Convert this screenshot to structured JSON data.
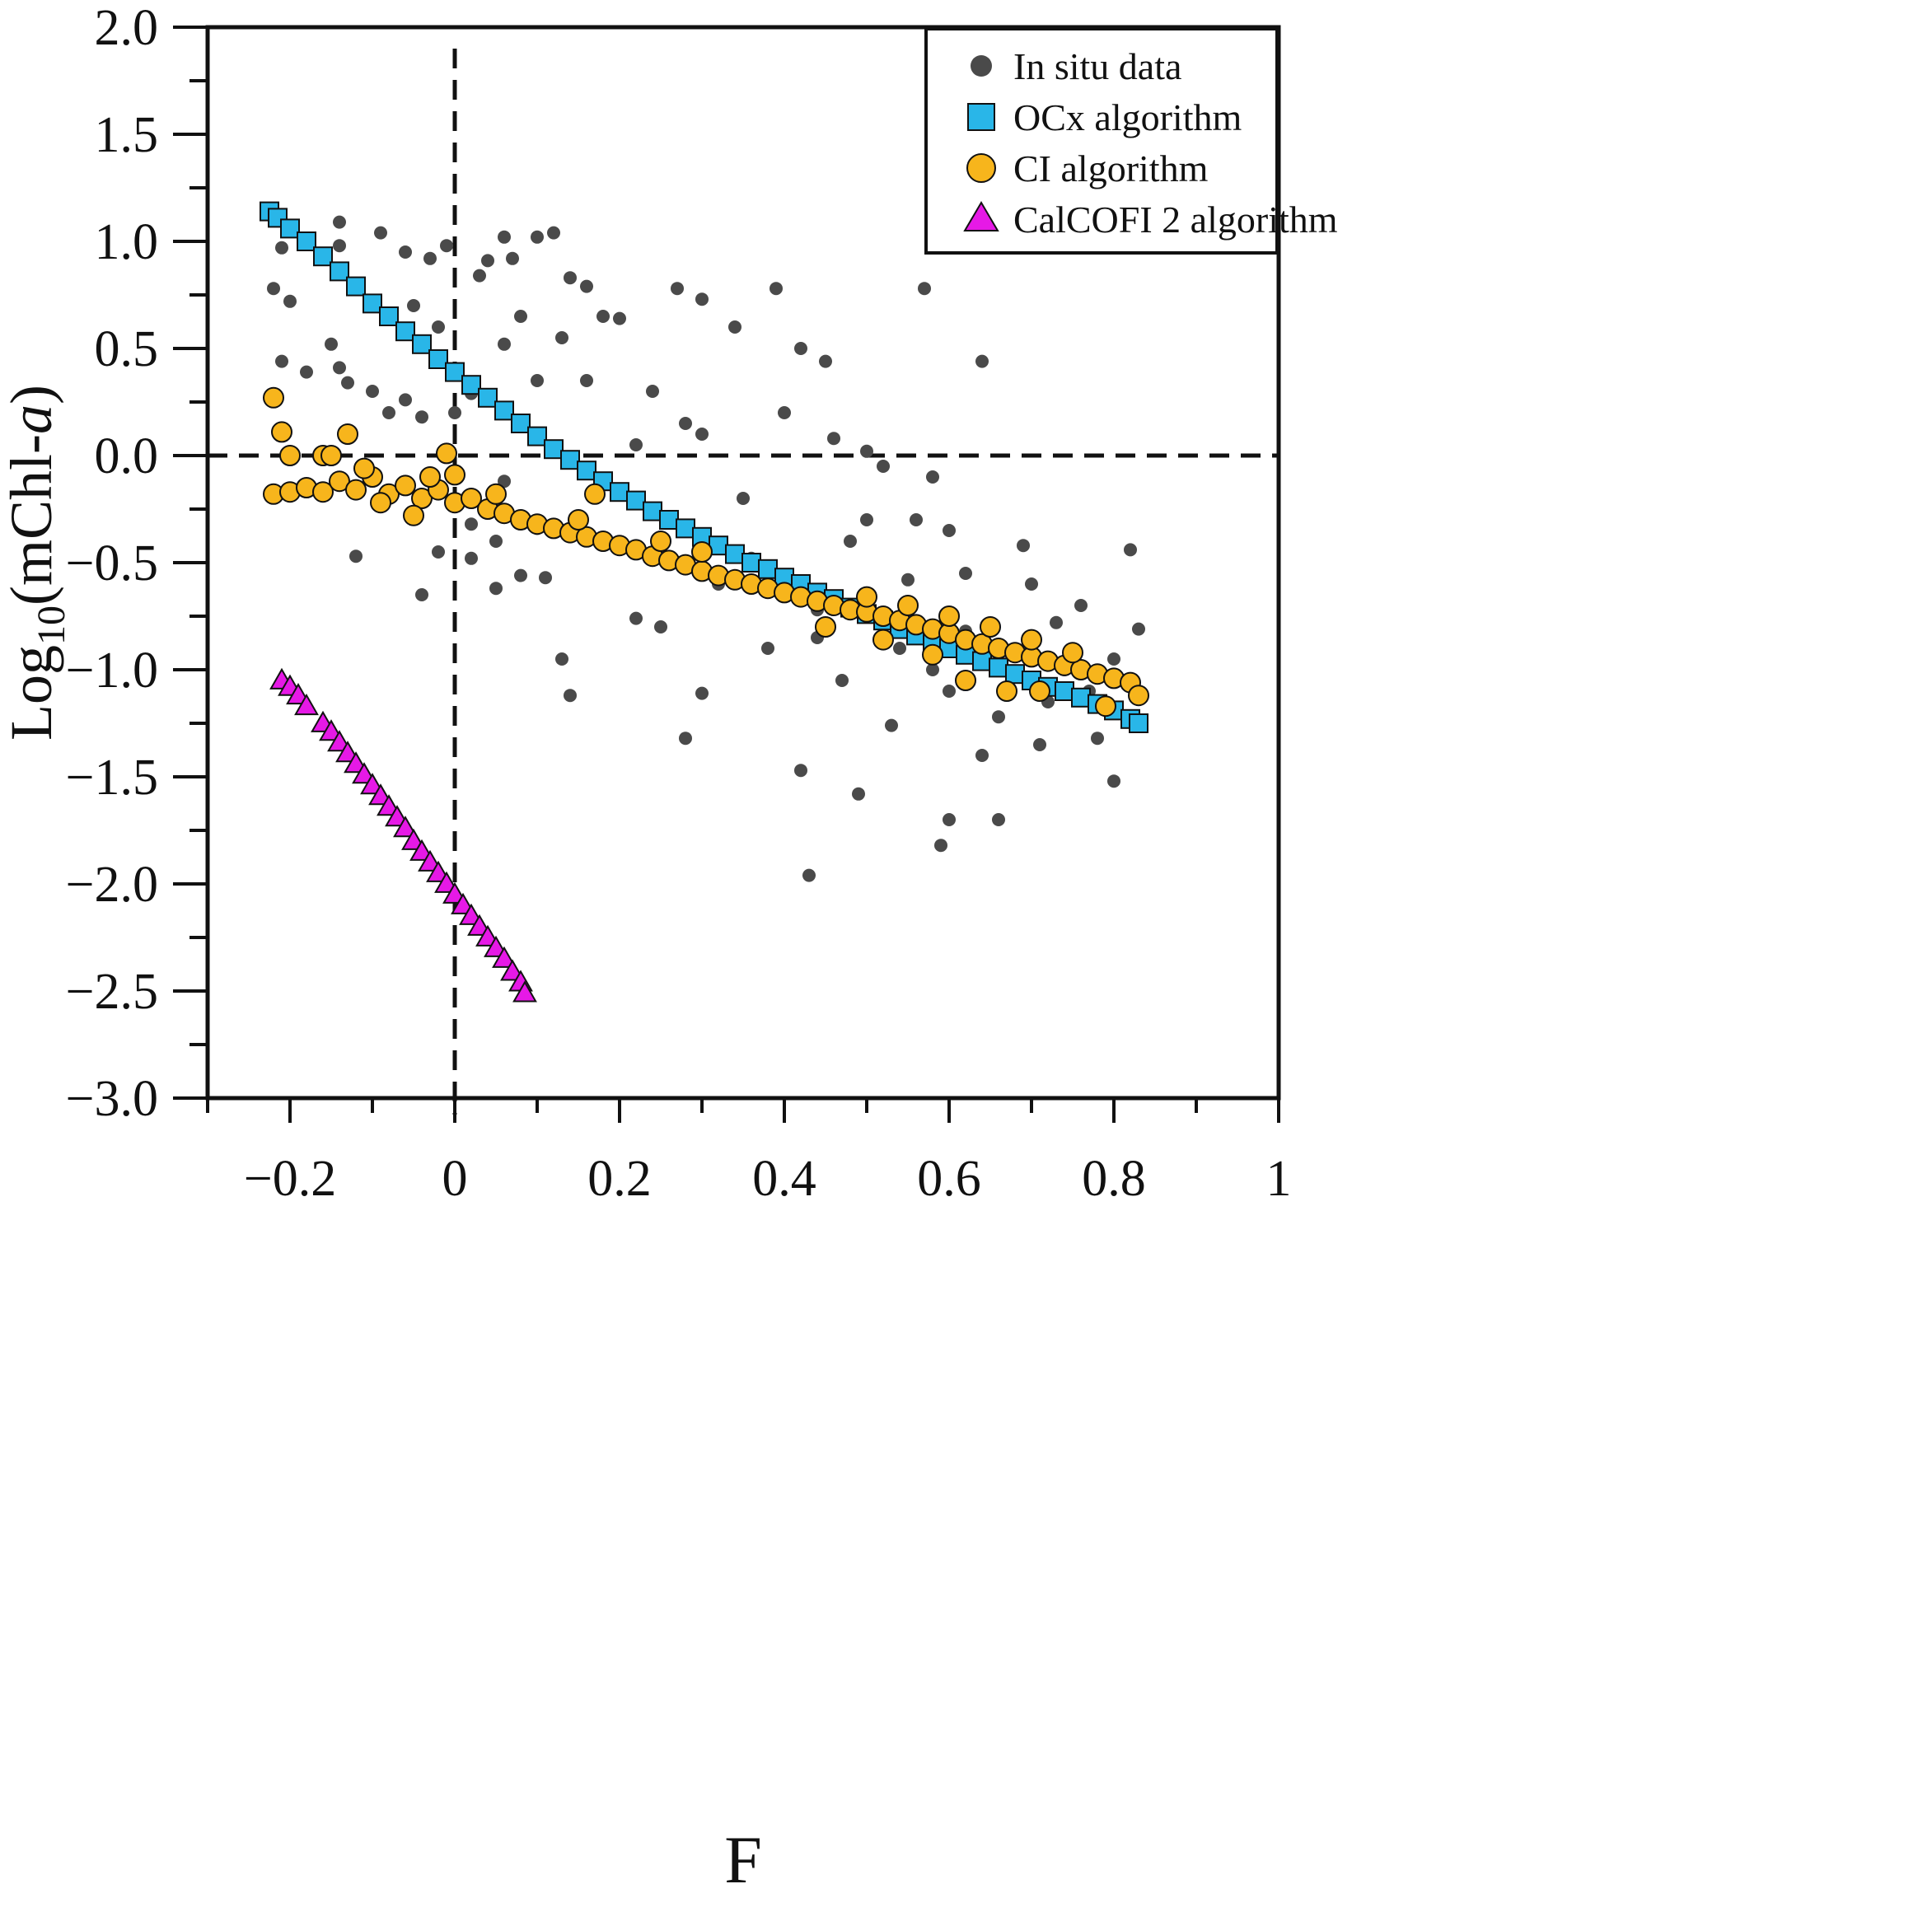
{
  "chart_data": {
    "type": "scatter",
    "title": "",
    "xlabel": "F",
    "ylabel_main": "Log",
    "ylabel_sub": "10",
    "ylabel_paren": "(mChl-",
    "ylabel_italic": "a",
    "ylabel_close": ")",
    "xlim": [
      -0.3,
      1.0
    ],
    "ylim": [
      -3.0,
      2.0
    ],
    "x_ticks": [
      -0.2,
      0,
      0.2,
      0.4,
      0.6,
      0.8,
      1
    ],
    "x_tick_labels": [
      "−0.2",
      "0",
      "0.2",
      "0.4",
      "0.6",
      "0.8",
      "1"
    ],
    "y_ticks": [
      -3.0,
      -2.5,
      -2.0,
      -1.5,
      -1.0,
      -0.5,
      0.0,
      0.5,
      1.0,
      1.5,
      2.0
    ],
    "y_tick_labels": [
      "−3.0",
      "−2.5",
      "−2.0",
      "−1.5",
      "−1.0",
      "−0.5",
      "0.0",
      "0.5",
      "1.0",
      "1.5",
      "2.0"
    ],
    "reference_lines": {
      "vertical_x": 0,
      "horizontal_y": 0
    },
    "legend": {
      "position": "top-right",
      "entries": [
        {
          "label": "In situ data",
          "marker": "circle-small",
          "color": "#4a4a4a"
        },
        {
          "label": "OCx algorithm",
          "marker": "square",
          "color": "#29b6e8"
        },
        {
          "label": "CI algorithm",
          "marker": "circle",
          "color": "#f7b51c"
        },
        {
          "label": "CalCOFI 2 algorithm",
          "marker": "triangle",
          "color": "#e619e6"
        }
      ]
    },
    "series": [
      {
        "name": "In situ data",
        "marker": "circle-small",
        "color": "#4a4a4a",
        "points": [
          [
            -0.21,
            0.97
          ],
          [
            -0.2,
            0.72
          ],
          [
            -0.22,
            0.78
          ],
          [
            -0.21,
            0.44
          ],
          [
            -0.14,
            1.09
          ],
          [
            -0.14,
            0.98
          ],
          [
            -0.09,
            1.04
          ],
          [
            -0.15,
            0.52
          ],
          [
            -0.14,
            0.41
          ],
          [
            -0.18,
            0.39
          ],
          [
            -0.13,
            0.34
          ],
          [
            -0.1,
            0.3
          ],
          [
            -0.06,
            0.95
          ],
          [
            -0.03,
            0.92
          ],
          [
            -0.01,
            0.98
          ],
          [
            -0.05,
            0.7
          ],
          [
            -0.02,
            0.6
          ],
          [
            0.03,
            0.84
          ],
          [
            0.04,
            0.91
          ],
          [
            0.06,
            1.02
          ],
          [
            0.1,
            1.02
          ],
          [
            0.12,
            1.04
          ],
          [
            0.07,
            0.92
          ],
          [
            0.14,
            0.83
          ],
          [
            0.16,
            0.79
          ],
          [
            -0.06,
            0.26
          ],
          [
            -0.08,
            0.2
          ],
          [
            -0.04,
            0.18
          ],
          [
            -0.12,
            -0.47
          ],
          [
            -0.02,
            -0.45
          ],
          [
            -0.04,
            -0.65
          ],
          [
            0.02,
            -0.48
          ],
          [
            0.05,
            -0.62
          ],
          [
            0.08,
            -0.56
          ],
          [
            0.11,
            -0.57
          ],
          [
            0.13,
            -0.95
          ],
          [
            0.14,
            -1.12
          ],
          [
            0.22,
            -0.76
          ],
          [
            0.28,
            -1.32
          ],
          [
            0.3,
            -1.11
          ],
          [
            0.42,
            -1.47
          ],
          [
            0.43,
            -1.96
          ],
          [
            0.49,
            -1.58
          ],
          [
            0.59,
            -1.82
          ],
          [
            0.6,
            -1.7
          ],
          [
            0.66,
            -1.7
          ],
          [
            0.8,
            -1.52
          ],
          [
            0.57,
            0.78
          ],
          [
            0.64,
            0.44
          ],
          [
            0.82,
            -0.44
          ],
          [
            0.83,
            -0.81
          ],
          [
            0.78,
            -1.32
          ],
          [
            0.71,
            -1.35
          ],
          [
            0.64,
            -1.4
          ],
          [
            0.53,
            -1.26
          ],
          [
            0.45,
            0.44
          ],
          [
            0.39,
            0.78
          ],
          [
            0.27,
            0.78
          ],
          [
            0.3,
            0.73
          ],
          [
            0.18,
            0.65
          ],
          [
            0.2,
            0.64
          ],
          [
            0.24,
            0.3
          ],
          [
            0.06,
            0.52
          ],
          [
            0.1,
            0.35
          ],
          [
            0.02,
            0.29
          ],
          [
            0.0,
            0.2
          ],
          [
            0.06,
            -0.12
          ],
          [
            0.02,
            -0.32
          ],
          [
            0.05,
            -0.4
          ],
          [
            0.1,
            -0.34
          ],
          [
            0.15,
            -0.29
          ],
          [
            0.2,
            -0.18
          ],
          [
            0.32,
            -0.6
          ],
          [
            0.36,
            -0.48
          ],
          [
            0.44,
            -0.72
          ],
          [
            0.55,
            -0.58
          ],
          [
            0.62,
            -0.82
          ],
          [
            0.68,
            -0.92
          ],
          [
            0.74,
            -1.0
          ],
          [
            0.5,
            -0.3
          ],
          [
            0.46,
            0.08
          ],
          [
            0.52,
            -0.05
          ],
          [
            0.58,
            -0.1
          ],
          [
            0.69,
            -0.42
          ],
          [
            0.38,
            -0.9
          ],
          [
            0.25,
            -0.8
          ],
          [
            0.6,
            -1.1
          ],
          [
            0.66,
            -1.22
          ],
          [
            0.72,
            -1.15
          ],
          [
            0.76,
            -0.7
          ],
          [
            0.8,
            -0.95
          ],
          [
            0.4,
            0.2
          ],
          [
            0.35,
            -0.2
          ],
          [
            0.3,
            0.1
          ],
          [
            0.22,
            0.05
          ],
          [
            0.48,
            -0.4
          ],
          [
            0.56,
            -0.3
          ],
          [
            0.62,
            -0.55
          ],
          [
            0.7,
            -0.6
          ],
          [
            0.77,
            -1.1
          ],
          [
            0.54,
            -0.9
          ],
          [
            0.47,
            -1.05
          ],
          [
            0.34,
            0.6
          ],
          [
            0.42,
            0.5
          ],
          [
            0.13,
            0.55
          ],
          [
            0.08,
            0.65
          ],
          [
            0.16,
            0.35
          ],
          [
            0.28,
            0.15
          ],
          [
            0.5,
            0.02
          ],
          [
            0.6,
            -0.35
          ],
          [
            0.65,
            -0.9
          ],
          [
            0.73,
            -0.78
          ],
          [
            0.58,
            -1.0
          ],
          [
            0.44,
            -0.85
          ]
        ]
      },
      {
        "name": "OCx algorithm",
        "marker": "square",
        "color": "#29b6e8",
        "points": [
          [
            -0.225,
            1.14
          ],
          [
            -0.215,
            1.11
          ],
          [
            -0.2,
            1.06
          ],
          [
            -0.18,
            1.0
          ],
          [
            -0.16,
            0.93
          ],
          [
            -0.14,
            0.86
          ],
          [
            -0.12,
            0.79
          ],
          [
            -0.1,
            0.71
          ],
          [
            -0.08,
            0.65
          ],
          [
            -0.06,
            0.58
          ],
          [
            -0.04,
            0.52
          ],
          [
            -0.02,
            0.45
          ],
          [
            0.0,
            0.39
          ],
          [
            0.02,
            0.33
          ],
          [
            0.04,
            0.27
          ],
          [
            0.06,
            0.21
          ],
          [
            0.08,
            0.15
          ],
          [
            0.1,
            0.09
          ],
          [
            0.12,
            0.03
          ],
          [
            0.14,
            -0.02
          ],
          [
            0.16,
            -0.07
          ],
          [
            0.18,
            -0.12
          ],
          [
            0.2,
            -0.17
          ],
          [
            0.22,
            -0.21
          ],
          [
            0.24,
            -0.26
          ],
          [
            0.26,
            -0.3
          ],
          [
            0.28,
            -0.34
          ],
          [
            0.3,
            -0.38
          ],
          [
            0.32,
            -0.42
          ],
          [
            0.34,
            -0.46
          ],
          [
            0.36,
            -0.5
          ],
          [
            0.38,
            -0.53
          ],
          [
            0.4,
            -0.57
          ],
          [
            0.42,
            -0.6
          ],
          [
            0.44,
            -0.64
          ],
          [
            0.46,
            -0.67
          ],
          [
            0.48,
            -0.71
          ],
          [
            0.5,
            -0.74
          ],
          [
            0.52,
            -0.77
          ],
          [
            0.54,
            -0.81
          ],
          [
            0.56,
            -0.84
          ],
          [
            0.58,
            -0.87
          ],
          [
            0.6,
            -0.9
          ],
          [
            0.62,
            -0.93
          ],
          [
            0.64,
            -0.96
          ],
          [
            0.66,
            -0.99
          ],
          [
            0.68,
            -1.02
          ],
          [
            0.7,
            -1.05
          ],
          [
            0.72,
            -1.08
          ],
          [
            0.74,
            -1.1
          ],
          [
            0.76,
            -1.13
          ],
          [
            0.78,
            -1.16
          ],
          [
            0.8,
            -1.19
          ],
          [
            0.82,
            -1.23
          ],
          [
            0.83,
            -1.25
          ]
        ]
      },
      {
        "name": "CI algorithm",
        "marker": "circle",
        "color": "#f7b51c",
        "points": [
          [
            -0.22,
            0.27
          ],
          [
            -0.21,
            0.11
          ],
          [
            -0.2,
            0.0
          ],
          [
            -0.16,
            0.0
          ],
          [
            -0.13,
            0.1
          ],
          [
            -0.15,
            0.0
          ],
          [
            -0.01,
            0.01
          ],
          [
            -0.22,
            -0.18
          ],
          [
            -0.2,
            -0.17
          ],
          [
            -0.18,
            -0.15
          ],
          [
            -0.16,
            -0.17
          ],
          [
            -0.14,
            -0.12
          ],
          [
            -0.12,
            -0.16
          ],
          [
            -0.1,
            -0.1
          ],
          [
            -0.08,
            -0.18
          ],
          [
            -0.06,
            -0.14
          ],
          [
            -0.04,
            -0.2
          ],
          [
            -0.02,
            -0.16
          ],
          [
            0.0,
            -0.22
          ],
          [
            0.02,
            -0.2
          ],
          [
            0.04,
            -0.25
          ],
          [
            0.06,
            -0.27
          ],
          [
            0.08,
            -0.3
          ],
          [
            0.1,
            -0.32
          ],
          [
            0.12,
            -0.34
          ],
          [
            0.14,
            -0.36
          ],
          [
            0.16,
            -0.38
          ],
          [
            0.18,
            -0.4
          ],
          [
            0.2,
            -0.42
          ],
          [
            0.22,
            -0.44
          ],
          [
            0.24,
            -0.47
          ],
          [
            0.26,
            -0.49
          ],
          [
            0.28,
            -0.51
          ],
          [
            0.3,
            -0.54
          ],
          [
            0.32,
            -0.56
          ],
          [
            0.34,
            -0.58
          ],
          [
            0.36,
            -0.6
          ],
          [
            0.38,
            -0.62
          ],
          [
            0.4,
            -0.64
          ],
          [
            0.42,
            -0.66
          ],
          [
            0.44,
            -0.68
          ],
          [
            0.46,
            -0.7
          ],
          [
            0.48,
            -0.72
          ],
          [
            0.5,
            -0.73
          ],
          [
            0.52,
            -0.75
          ],
          [
            0.54,
            -0.77
          ],
          [
            0.56,
            -0.79
          ],
          [
            0.58,
            -0.81
          ],
          [
            0.6,
            -0.83
          ],
          [
            0.62,
            -0.86
          ],
          [
            0.64,
            -0.88
          ],
          [
            0.66,
            -0.9
          ],
          [
            0.68,
            -0.92
          ],
          [
            0.7,
            -0.94
          ],
          [
            0.72,
            -0.96
          ],
          [
            0.74,
            -0.98
          ],
          [
            0.76,
            -1.0
          ],
          [
            0.78,
            -1.02
          ],
          [
            0.8,
            -1.04
          ],
          [
            0.82,
            -1.06
          ],
          [
            0.83,
            -1.12
          ],
          [
            0.5,
            -0.66
          ],
          [
            0.55,
            -0.7
          ],
          [
            0.6,
            -0.75
          ],
          [
            0.65,
            -0.8
          ],
          [
            0.7,
            -0.86
          ],
          [
            0.75,
            -0.92
          ],
          [
            0.45,
            -0.8
          ],
          [
            0.52,
            -0.86
          ],
          [
            0.58,
            -0.93
          ],
          [
            0.62,
            -1.05
          ],
          [
            0.67,
            -1.1
          ],
          [
            0.71,
            -1.1
          ],
          [
            0.79,
            -1.17
          ],
          [
            0.3,
            -0.45
          ],
          [
            0.25,
            -0.4
          ],
          [
            0.15,
            -0.3
          ],
          [
            0.05,
            -0.18
          ],
          [
            -0.03,
            -0.1
          ],
          [
            -0.11,
            -0.06
          ],
          [
            -0.09,
            -0.22
          ],
          [
            -0.05,
            -0.28
          ],
          [
            0.0,
            -0.09
          ],
          [
            0.17,
            -0.18
          ]
        ]
      },
      {
        "name": "CalCOFI 2 algorithm",
        "marker": "triangle",
        "color": "#e619e6",
        "points": [
          [
            -0.21,
            -1.05
          ],
          [
            -0.2,
            -1.08
          ],
          [
            -0.19,
            -1.12
          ],
          [
            -0.18,
            -1.17
          ],
          [
            -0.16,
            -1.25
          ],
          [
            -0.15,
            -1.29
          ],
          [
            -0.14,
            -1.34
          ],
          [
            -0.13,
            -1.39
          ],
          [
            -0.12,
            -1.44
          ],
          [
            -0.11,
            -1.49
          ],
          [
            -0.1,
            -1.54
          ],
          [
            -0.09,
            -1.59
          ],
          [
            -0.08,
            -1.64
          ],
          [
            -0.07,
            -1.69
          ],
          [
            -0.06,
            -1.74
          ],
          [
            -0.05,
            -1.8
          ],
          [
            -0.04,
            -1.85
          ],
          [
            -0.03,
            -1.9
          ],
          [
            -0.02,
            -1.95
          ],
          [
            -0.01,
            -2.0
          ],
          [
            0.0,
            -2.05
          ],
          [
            0.01,
            -2.1
          ],
          [
            0.02,
            -2.15
          ],
          [
            0.03,
            -2.2
          ],
          [
            0.04,
            -2.25
          ],
          [
            0.05,
            -2.3
          ],
          [
            0.06,
            -2.35
          ],
          [
            0.07,
            -2.41
          ],
          [
            0.08,
            -2.46
          ],
          [
            0.085,
            -2.51
          ]
        ]
      }
    ]
  }
}
